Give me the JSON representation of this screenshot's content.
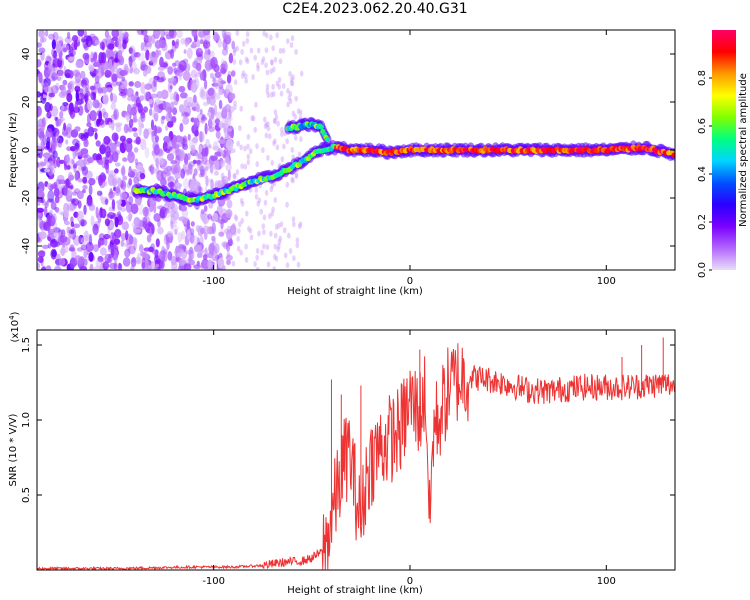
{
  "title": "C2E4.2023.062.20.40.G31",
  "chart_data": [
    {
      "type": "heatmap",
      "title": "C2E4.2023.062.20.40.G31",
      "xlabel": "Height of straight line (km)",
      "ylabel": "Frequency (Hz)",
      "xlim": [
        -190,
        135
      ],
      "ylim": [
        -50,
        50
      ],
      "xticks": [
        -100,
        0,
        100
      ],
      "xtick_labels": [
        "-100",
        "0",
        "100"
      ],
      "yticks": [
        -40,
        -20,
        0,
        20,
        40
      ],
      "ytick_labels": [
        "-40",
        "-20",
        "0",
        "20",
        "40"
      ],
      "colorbar": {
        "label": "Normalized spectral amplitude",
        "range": [
          0,
          1
        ],
        "ticks": [
          0.0,
          0.2,
          0.4,
          0.6,
          0.8
        ],
        "tick_labels": [
          "0.0",
          "0.2",
          "0.4",
          "0.6",
          "0.8"
        ],
        "colors": [
          "#e9ddf7",
          "#b266ff",
          "#7a00ff",
          "#2a00ff",
          "#0050ff",
          "#00d5ff",
          "#00ff80",
          "#80ff00",
          "#ffff00",
          "#ff9900",
          "#ff0000",
          "#ff0066"
        ]
      },
      "trace": {
        "x": [
          -140,
          -130,
          -120,
          -110,
          -100,
          -90,
          -80,
          -70,
          -62,
          -55,
          -50,
          -45,
          -40,
          -35,
          -30,
          -20,
          -10,
          0,
          20,
          40,
          60,
          80,
          100,
          120,
          135
        ],
        "y": [
          -17,
          -17,
          -19,
          -21,
          -19,
          -16,
          -13,
          -11,
          -8,
          -5,
          -2,
          0,
          1,
          1,
          0,
          0,
          -1,
          0,
          0,
          0,
          0,
          0,
          0,
          1,
          -2
        ]
      },
      "branch": {
        "x": [
          -62,
          -55,
          -50,
          -45,
          -42
        ],
        "y": [
          9,
          10,
          11,
          9,
          4
        ]
      },
      "noise_region_x": [
        -190,
        -90
      ],
      "grid": false
    },
    {
      "type": "line",
      "xlabel": "Height of straight line (km)",
      "ylabel": "SNR (10 * V/V)",
      "multiplier_label": "(x10",
      "multiplier_exp": "4",
      "xlim": [
        -190,
        135
      ],
      "ylim": [
        0,
        1.6
      ],
      "xticks": [
        -100,
        0,
        100
      ],
      "xtick_labels": [
        "-100",
        "0",
        "100"
      ],
      "yticks": [
        0.5,
        1.0,
        1.5
      ],
      "ytick_labels": [
        "0.5",
        "1.0",
        "1.5"
      ],
      "color": "#ee3333",
      "series": [
        {
          "x": [
            -190,
            -150,
            -110,
            -90,
            -75,
            -65,
            -55,
            -50,
            -45,
            -42,
            -40,
            -37,
            -34,
            -31,
            -28,
            -25,
            -22,
            -19,
            -15,
            -10,
            -5,
            0,
            5,
            8,
            10,
            12,
            15,
            20,
            25,
            30,
            40,
            50,
            60,
            70,
            80,
            90,
            100,
            110,
            120,
            130,
            135
          ],
          "values": [
            0.01,
            0.01,
            0.02,
            0.02,
            0.03,
            0.05,
            0.06,
            0.08,
            0.12,
            0.2,
            0.35,
            0.52,
            0.7,
            0.8,
            0.55,
            0.3,
            0.65,
            0.75,
            0.82,
            0.88,
            0.93,
            1.12,
            1.05,
            1.2,
            0.3,
            0.95,
            1.02,
            1.22,
            1.28,
            1.29,
            1.27,
            1.24,
            1.2,
            1.19,
            1.21,
            1.22,
            1.22,
            1.22,
            1.23,
            1.24,
            1.23
          ],
          "peaks": [
            {
              "x": -40,
              "y": 1.27
            },
            {
              "x": -35,
              "y": 1.17
            },
            {
              "x": -25,
              "y": 1.23
            },
            {
              "x": 5,
              "y": 1.47
            },
            {
              "x": 108,
              "y": 1.42
            },
            {
              "x": 118,
              "y": 1.5
            },
            {
              "x": 129,
              "y": 1.55
            }
          ]
        }
      ],
      "grid": false
    }
  ]
}
